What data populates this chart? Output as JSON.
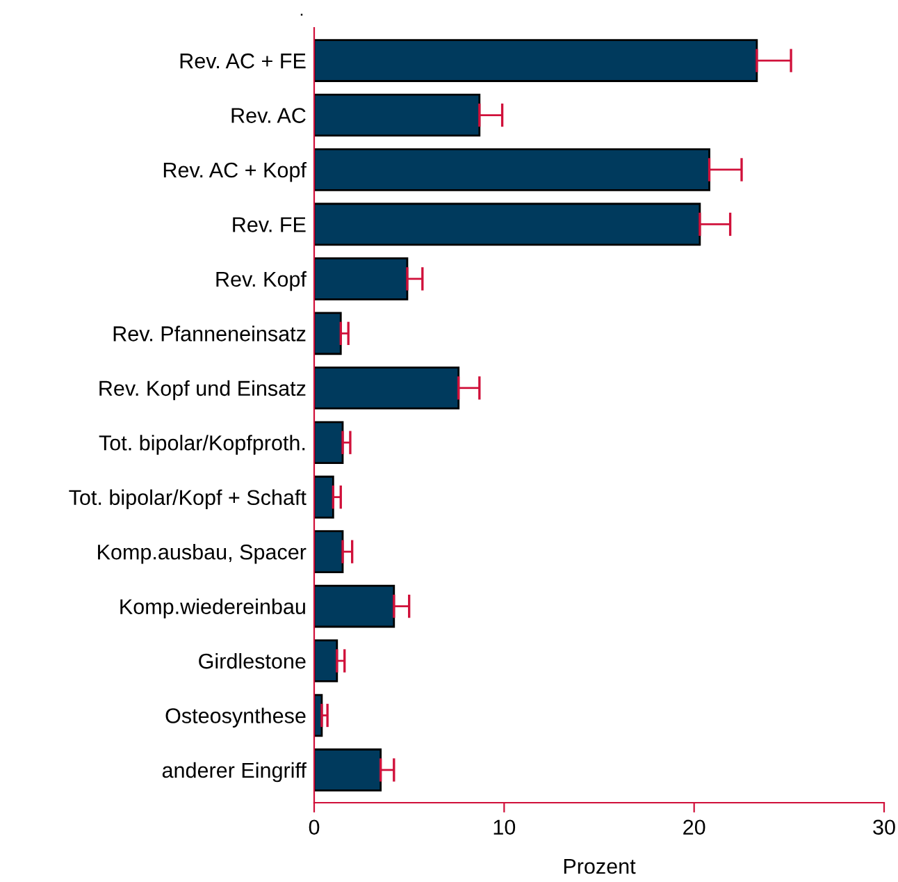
{
  "chart_data": {
    "type": "bar",
    "orientation": "horizontal",
    "xlabel": "Prozent",
    "annotations": [
      "."
    ],
    "categories": [
      "Rev. AC + FE",
      "Rev. AC",
      "Rev. AC + Kopf",
      "Rev. FE",
      "Rev. Kopf",
      "Rev. Pfanneneinsatz",
      "Rev. Kopf und Einsatz",
      "Tot. bipolar/Kopfproth.",
      "Tot. bipolar/Kopf + Schaft",
      "Komp.ausbau, Spacer",
      "Komp.wiedereinbau",
      "Girdlestone",
      "Osteosynthese",
      "anderer Eingriff"
    ],
    "values": [
      23.3,
      8.7,
      20.8,
      20.3,
      4.9,
      1.4,
      7.6,
      1.5,
      1.0,
      1.5,
      4.2,
      1.2,
      0.4,
      3.5
    ],
    "errors": [
      [
        23.3,
        25.1
      ],
      [
        8.7,
        9.9
      ],
      [
        20.8,
        22.5
      ],
      [
        20.3,
        21.9
      ],
      [
        4.9,
        5.7
      ],
      [
        1.4,
        1.8
      ],
      [
        7.6,
        8.7
      ],
      [
        1.5,
        1.9
      ],
      [
        1.0,
        1.4
      ],
      [
        1.5,
        2.0
      ],
      [
        4.2,
        5.0
      ],
      [
        1.2,
        1.6
      ],
      [
        0.4,
        0.7
      ],
      [
        3.5,
        4.2
      ]
    ],
    "color": "#003a5d",
    "xlim": [
      0,
      30
    ],
    "xticks": [
      0,
      10,
      20,
      30
    ],
    "grid": false,
    "legend": false
  }
}
